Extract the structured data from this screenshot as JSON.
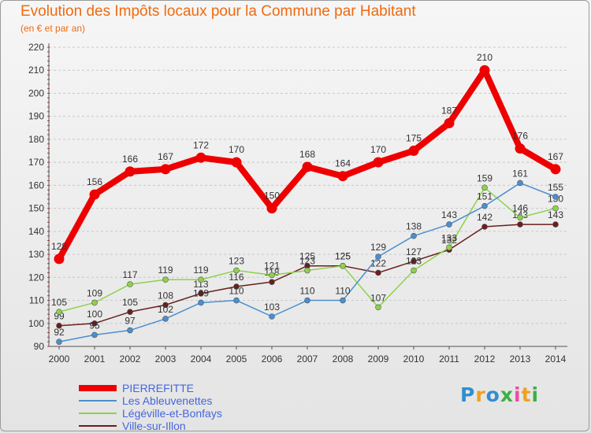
{
  "chart_data": {
    "type": "line",
    "title": "Evolution des Impôts locaux pour la Commune par Habitant",
    "subtitle": "(en € et par an)",
    "xlabel": "",
    "ylabel": "",
    "x": [
      "2000",
      "2001",
      "2002",
      "2003",
      "2004",
      "2005",
      "2006",
      "2007",
      "2008",
      "2009",
      "2010",
      "2011",
      "2012",
      "2013",
      "2014"
    ],
    "ylim": [
      90,
      220
    ],
    "yticks": [
      90,
      100,
      110,
      120,
      130,
      140,
      150,
      160,
      170,
      180,
      190,
      200,
      210,
      220
    ],
    "grid": true,
    "series": [
      {
        "name": "Ville-sur-Illon",
        "color": "#6b1e1e",
        "values": [
          99,
          100,
          105,
          108,
          113,
          116,
          118,
          125,
          125,
          122,
          127,
          132,
          142,
          143,
          143
        ]
      },
      {
        "name": "Légéville-et-Bonfays",
        "color": "#8ed14b",
        "values": [
          105,
          109,
          117,
          119,
          119,
          123,
          121,
          123,
          125,
          107,
          123,
          133,
          159,
          146,
          150
        ]
      },
      {
        "name": "Les Ableuvenettes",
        "color": "#4a8fcf",
        "values": [
          92,
          95,
          97,
          102,
          109,
          110,
          103,
          110,
          110,
          129,
          138,
          143,
          151,
          161,
          155
        ]
      },
      {
        "name": "PIERREFITTE",
        "color": "#ee0000",
        "values": [
          128,
          156,
          166,
          167,
          172,
          170,
          150,
          168,
          164,
          170,
          175,
          187,
          210,
          176,
          167
        ]
      }
    ]
  },
  "legend": [
    {
      "name": "PIERREFITTE",
      "color": "#ee0000"
    },
    {
      "name": "Les Ableuvenettes",
      "color": "#4a8fcf"
    },
    {
      "name": "Légéville-et-Bonfays",
      "color": "#8ed14b"
    },
    {
      "name": "Ville-sur-Illon",
      "color": "#6b1e1e"
    }
  ],
  "logo": {
    "letters": [
      "P",
      "r",
      "o",
      "x",
      "i",
      "t",
      "i"
    ],
    "colors": [
      "#2f8fd0",
      "#f0a020",
      "#2f8fd0",
      "#3db043",
      "#e94f9c",
      "#f0a020",
      "#3db043"
    ]
  }
}
